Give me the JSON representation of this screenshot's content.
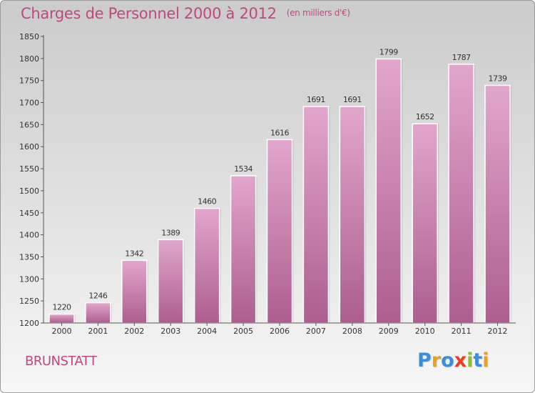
{
  "header": {
    "title": "Charges de Personnel 2000 à 2012",
    "subtitle": "(en milliers d'€)"
  },
  "footer": {
    "place": "BRUNSTATT",
    "logo_text": "Proxiti"
  },
  "colors": {
    "accent": "#c0487f",
    "bar_top": "#e2a6cb",
    "bar_bottom": "#ad5e8f",
    "logo_letters": [
      "#3a8fd8",
      "#e8a020",
      "#3a8fd8",
      "#e84020",
      "#8cc030",
      "#3a8fd8",
      "#e8a020"
    ]
  },
  "chart_data": {
    "type": "bar",
    "categories": [
      "2000",
      "2001",
      "2002",
      "2003",
      "2004",
      "2005",
      "2006",
      "2007",
      "2008",
      "2009",
      "2010",
      "2011",
      "2012"
    ],
    "values": [
      1220,
      1246,
      1342,
      1389,
      1460,
      1534,
      1616,
      1691,
      1691,
      1799,
      1652,
      1787,
      1739
    ],
    "title": "Charges de Personnel 2000 à 2012",
    "subtitle": "(en milliers d'€)",
    "ylim": [
      1200,
      1850
    ],
    "yticks": [
      1200,
      1250,
      1300,
      1350,
      1400,
      1450,
      1500,
      1550,
      1600,
      1650,
      1700,
      1750,
      1800,
      1850
    ],
    "data_labels": true,
    "grid": false
  }
}
